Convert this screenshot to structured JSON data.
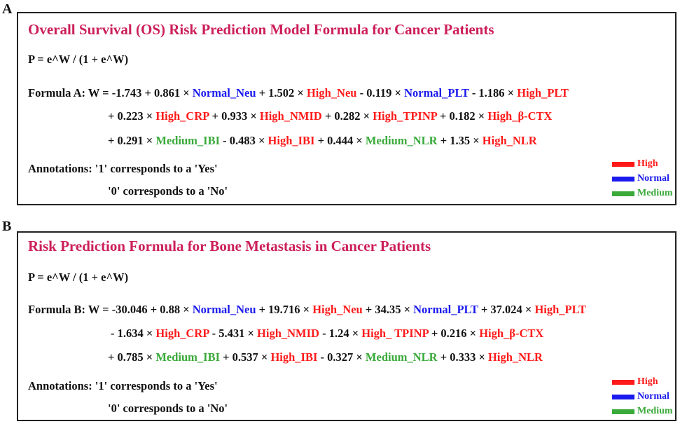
{
  "panels": [
    {
      "letter": "A",
      "title": "Overall Survival (OS) Risk Prediction Model Formula for Cancer Patients",
      "prob_formula": "P = e^W / (1 + e^W)",
      "lines": [
        [
          {
            "t": "Formula A: W = -1.743 + 0.861 × ",
            "c": "black"
          },
          {
            "t": "Normal_Neu",
            "c": "blue"
          },
          {
            "t": " + 1.502 × ",
            "c": "black"
          },
          {
            "t": "High_Neu",
            "c": "red"
          },
          {
            "t": " - 0.119 × ",
            "c": "black"
          },
          {
            "t": "Normal_PLT",
            "c": "blue"
          },
          {
            "t": " - 1.186 × ",
            "c": "black"
          },
          {
            "t": "High_PLT",
            "c": "red"
          }
        ],
        [
          {
            "t": "+ 0.223 × ",
            "c": "black"
          },
          {
            "t": "High_CRP",
            "c": "red"
          },
          {
            "t": " + 0.933 × ",
            "c": "black"
          },
          {
            "t": "High_NMID",
            "c": "red"
          },
          {
            "t": " + 0.282 × ",
            "c": "black"
          },
          {
            "t": "High_TPINP",
            "c": "red"
          },
          {
            "t": " + 0.182 × ",
            "c": "black"
          },
          {
            "t": "High_β-CTX",
            "c": "red"
          }
        ],
        [
          {
            "t": "+ 0.291 × ",
            "c": "black"
          },
          {
            "t": "Medium_IBI",
            "c": "green"
          },
          {
            "t": " - 0.483 × ",
            "c": "black"
          },
          {
            "t": "High_IBI",
            "c": "red"
          },
          {
            "t": " + 0.444 × ",
            "c": "black"
          },
          {
            "t": "Medium_NLR",
            "c": "green"
          },
          {
            "t": " + 1.35 × ",
            "c": "black"
          },
          {
            "t": "High_NLR",
            "c": "red"
          }
        ]
      ],
      "annotation_1": "Annotations: '1' corresponds to a 'Yes'",
      "annotation_2": "'0' corresponds to a 'No'"
    },
    {
      "letter": "B",
      "title": "Risk Prediction Formula for Bone Metastasis in Cancer Patients",
      "prob_formula": "P = e^W / (1 + e^W)",
      "lines": [
        [
          {
            "t": "Formula B: W = -30.046 + 0.88 × ",
            "c": "black"
          },
          {
            "t": "Normal_Neu",
            "c": "blue"
          },
          {
            "t": " + 19.716 × ",
            "c": "black"
          },
          {
            "t": "High_Neu",
            "c": "red"
          },
          {
            "t": " + 34.35 × ",
            "c": "black"
          },
          {
            "t": "Normal_PLT",
            "c": "blue"
          },
          {
            "t": " + 37.024 × ",
            "c": "black"
          },
          {
            "t": "High_PLT",
            "c": "red"
          }
        ],
        [
          {
            "t": "- 1.634 × ",
            "c": "black"
          },
          {
            "t": "High_CRP",
            "c": "red"
          },
          {
            "t": " - 5.431 × ",
            "c": "black"
          },
          {
            "t": "High_NMID",
            "c": "red"
          },
          {
            "t": " - 1.24 × ",
            "c": "black"
          },
          {
            "t": "High_ TPINP",
            "c": "red"
          },
          {
            "t": " + 0.216 × ",
            "c": "black"
          },
          {
            "t": "High_β-CTX",
            "c": "red"
          }
        ],
        [
          {
            "t": "+ 0.785 × ",
            "c": "black"
          },
          {
            "t": "Medium_IBI",
            "c": "green"
          },
          {
            "t": " + 0.537 × ",
            "c": "black"
          },
          {
            "t": "High_IBI",
            "c": "red"
          },
          {
            "t": " - 0.327 × ",
            "c": "black"
          },
          {
            "t": "Medium_NLR",
            "c": "green"
          },
          {
            "t": " + 0.333 × ",
            "c": "black"
          },
          {
            "t": "High_NLR",
            "c": "red"
          }
        ]
      ],
      "annotation_1": "Annotations: '1' corresponds to a 'Yes'",
      "annotation_2": "'0' corresponds to a 'No'"
    }
  ],
  "legend": [
    {
      "label": "High",
      "color": "#ff1a1a"
    },
    {
      "label": "Normal",
      "color": "#1a1aee"
    },
    {
      "label": "Medium",
      "color": "#3aaa3a"
    }
  ]
}
